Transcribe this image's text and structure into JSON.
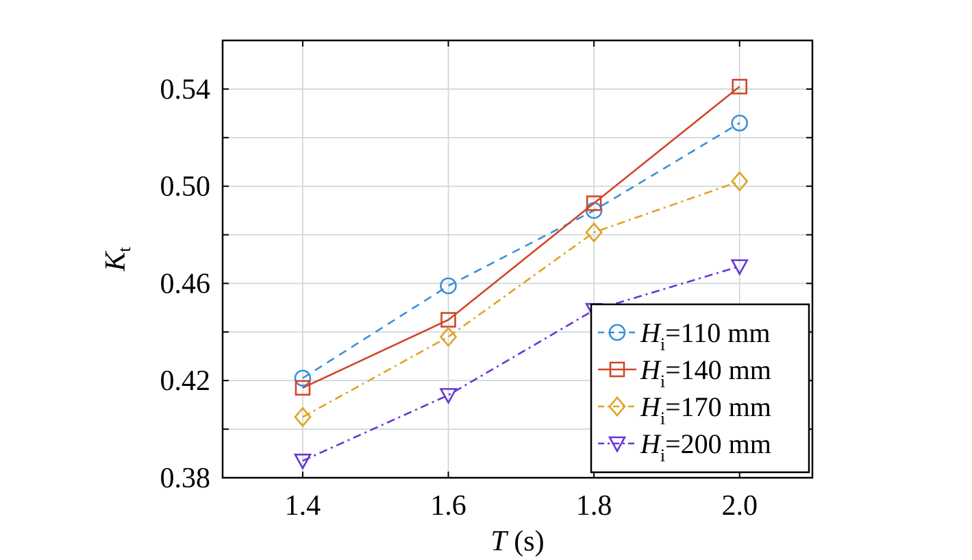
{
  "chart_data": {
    "type": "line",
    "title": "",
    "x": [
      1.4,
      1.6,
      1.8,
      2.0
    ],
    "x_ticks": [
      "1.4",
      "1.6",
      "1.8",
      "2.0"
    ],
    "xlim": [
      1.29,
      2.1
    ],
    "xlabel": {
      "var": "T",
      "unit": " (s)"
    },
    "ylim": [
      0.38,
      0.56
    ],
    "y_ticks": [
      "0.38",
      "0.42",
      "0.46",
      "0.50",
      "0.54"
    ],
    "y_tick_values": [
      0.38,
      0.42,
      0.46,
      0.5,
      0.54
    ],
    "y_minor_grid": [
      0.4,
      0.44,
      0.48,
      0.52
    ],
    "ylabel": {
      "var": "K",
      "sub": "t"
    },
    "grid": true,
    "legend_position": "bottom-right",
    "series": [
      {
        "name": {
          "var": "H",
          "sub": "i",
          "rest": "=110 mm"
        },
        "values": [
          0.421,
          0.459,
          0.49,
          0.526
        ],
        "color": "#3b8fd9",
        "marker": "circle",
        "dash": "dashed"
      },
      {
        "name": {
          "var": "H",
          "sub": "i",
          "rest": "=140 mm"
        },
        "values": [
          0.417,
          0.445,
          0.493,
          0.541
        ],
        "color": "#d1462a",
        "marker": "square",
        "dash": "solid"
      },
      {
        "name": {
          "var": "H",
          "sub": "i",
          "rest": "=170 mm"
        },
        "values": [
          0.405,
          0.438,
          0.481,
          0.502
        ],
        "color": "#e0a322",
        "marker": "diamond",
        "dash": "dashdot"
      },
      {
        "name": {
          "var": "H",
          "sub": "i",
          "rest": "=200 mm"
        },
        "values": [
          0.387,
          0.414,
          0.449,
          0.467
        ],
        "color": "#6a35d6",
        "marker": "triangle-down",
        "dash": "dashdot"
      }
    ]
  }
}
